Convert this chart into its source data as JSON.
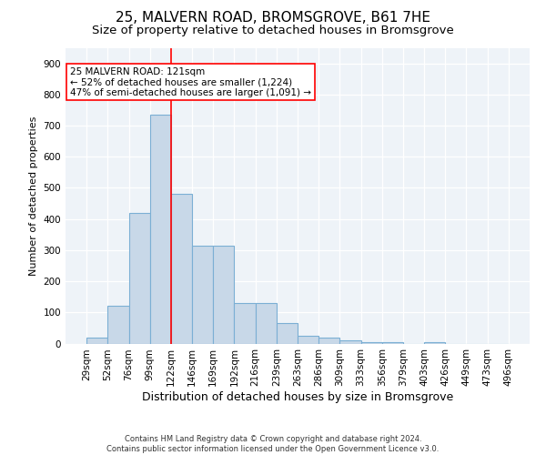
{
  "title1": "25, MALVERN ROAD, BROMSGROVE, B61 7HE",
  "title2": "Size of property relative to detached houses in Bromsgrove",
  "xlabel": "Distribution of detached houses by size in Bromsgrove",
  "ylabel": "Number of detached properties",
  "bar_values": [
    20,
    120,
    420,
    735,
    480,
    315,
    315,
    130,
    130,
    65,
    25,
    20,
    10,
    5,
    5,
    0,
    5,
    0,
    0,
    0
  ],
  "categories": [
    "29sqm",
    "52sqm",
    "76sqm",
    "99sqm",
    "122sqm",
    "146sqm",
    "169sqm",
    "192sqm",
    "216sqm",
    "239sqm",
    "263sqm",
    "286sqm",
    "309sqm",
    "333sqm",
    "356sqm",
    "379sqm",
    "403sqm",
    "426sqm",
    "449sqm",
    "473sqm",
    "496sqm"
  ],
  "bar_color": "#c8d8e8",
  "bar_edge_color": "#7bafd4",
  "vline_color": "red",
  "vline_x_index": 3.5,
  "annotation_text": "25 MALVERN ROAD: 121sqm\n← 52% of detached houses are smaller (1,224)\n47% of semi-detached houses are larger (1,091) →",
  "annotation_box_color": "white",
  "annotation_box_edge": "red",
  "ylim": [
    0,
    950
  ],
  "yticks": [
    0,
    100,
    200,
    300,
    400,
    500,
    600,
    700,
    800,
    900
  ],
  "footer1": "Contains HM Land Registry data © Crown copyright and database right 2024.",
  "footer2": "Contains public sector information licensed under the Open Government Licence v3.0.",
  "title1_fontsize": 11,
  "title2_fontsize": 9.5,
  "xlabel_fontsize": 9,
  "ylabel_fontsize": 8,
  "tick_fontsize": 7.5,
  "annotation_fontsize": 7.5,
  "footer_fontsize": 6,
  "bg_color": "#eef3f8"
}
